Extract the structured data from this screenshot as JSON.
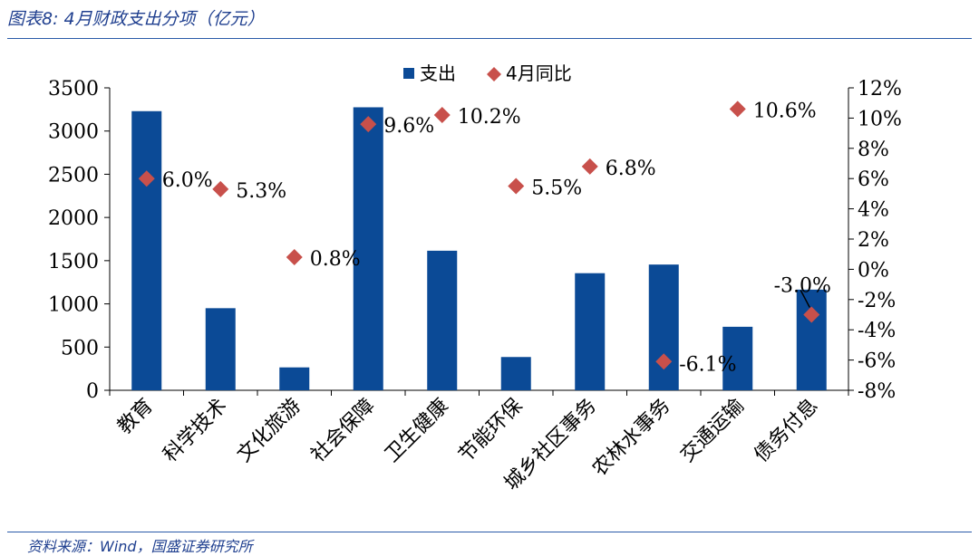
{
  "header": {
    "title": "图表8:  4月财政支出分项（亿元）"
  },
  "footer": {
    "source": "资料来源：Wind，国盛证券研究所"
  },
  "chart_data": {
    "type": "bar",
    "categories": [
      "教育",
      "科学技术",
      "文化旅游",
      "社会保障",
      "卫生健康",
      "节能环保",
      "城乡社区事务",
      "农林水事务",
      "交通运输",
      "债务付息"
    ],
    "series": [
      {
        "name": "支出",
        "type": "bar",
        "axis": "left",
        "color": "#0b4a96",
        "values": [
          3230,
          950,
          265,
          3275,
          1615,
          385,
          1355,
          1455,
          735,
          1165
        ]
      },
      {
        "name": "4月同比",
        "type": "scatter",
        "axis": "right",
        "color": "#c8504b",
        "values": [
          6.0,
          5.3,
          0.8,
          9.6,
          10.2,
          5.5,
          6.8,
          -6.1,
          10.6,
          -3.0
        ],
        "labels": [
          "6.0%",
          "5.3%",
          "0.8%",
          "9.6%",
          "10.2%",
          "5.5%",
          "6.8%",
          "-6.1%",
          "10.6%",
          "-3.0%"
        ]
      }
    ],
    "y_left": {
      "lim": [
        0,
        3500
      ],
      "ticks": [
        "0",
        "500",
        "1000",
        "1500",
        "2000",
        "2500",
        "3000",
        "3500"
      ]
    },
    "y_right": {
      "lim": [
        -8,
        12
      ],
      "ticks": [
        "-8%",
        "-6%",
        "-4%",
        "-2%",
        "0%",
        "2%",
        "4%",
        "6%",
        "8%",
        "10%",
        "12%"
      ]
    },
    "legend": {
      "position": "top-center",
      "items": [
        "支出",
        "4月同比"
      ]
    },
    "grid": false
  }
}
